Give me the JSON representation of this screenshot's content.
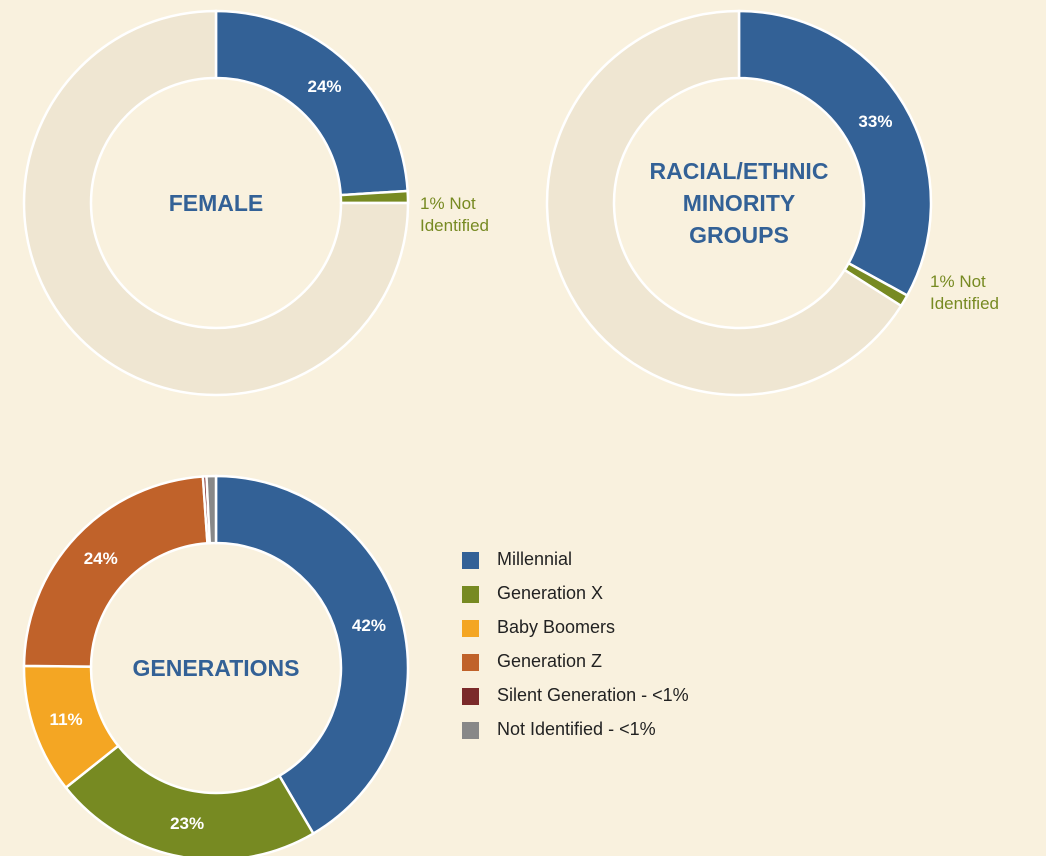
{
  "chart_data": [
    {
      "type": "donut",
      "title": "FEMALE",
      "categories": [
        null,
        "Not Identified",
        null
      ],
      "values": [
        24,
        1,
        75
      ],
      "value_labels": [
        "24%",
        "1%",
        null
      ],
      "colors": [
        "#336196",
        "#778a22",
        "#efe6d2"
      ]
    },
    {
      "type": "donut",
      "title": "RACIAL/ETHNIC MINORITY GROUPS",
      "categories": [
        null,
        "Not Identified",
        null
      ],
      "values": [
        33,
        1,
        66
      ],
      "value_labels": [
        "33%",
        "1%",
        null
      ],
      "colors": [
        "#336196",
        "#778a22",
        "#efe6d2"
      ]
    },
    {
      "type": "donut",
      "title": "GENERATIONS",
      "categories": [
        "Millennial",
        "Generation X",
        "Baby Boomers",
        "Generation Z",
        "Silent Generation - <1%",
        "Not Identified - <1%"
      ],
      "values": [
        42,
        23,
        11,
        24,
        0.3,
        0.8
      ],
      "value_labels": [
        "42%",
        "23%",
        "11%",
        "24%",
        null,
        null
      ],
      "colors": [
        "#336196",
        "#778a22",
        "#f4a623",
        "#c0622a",
        "#7b2a2a",
        "#888888"
      ],
      "legend": true
    }
  ]
}
